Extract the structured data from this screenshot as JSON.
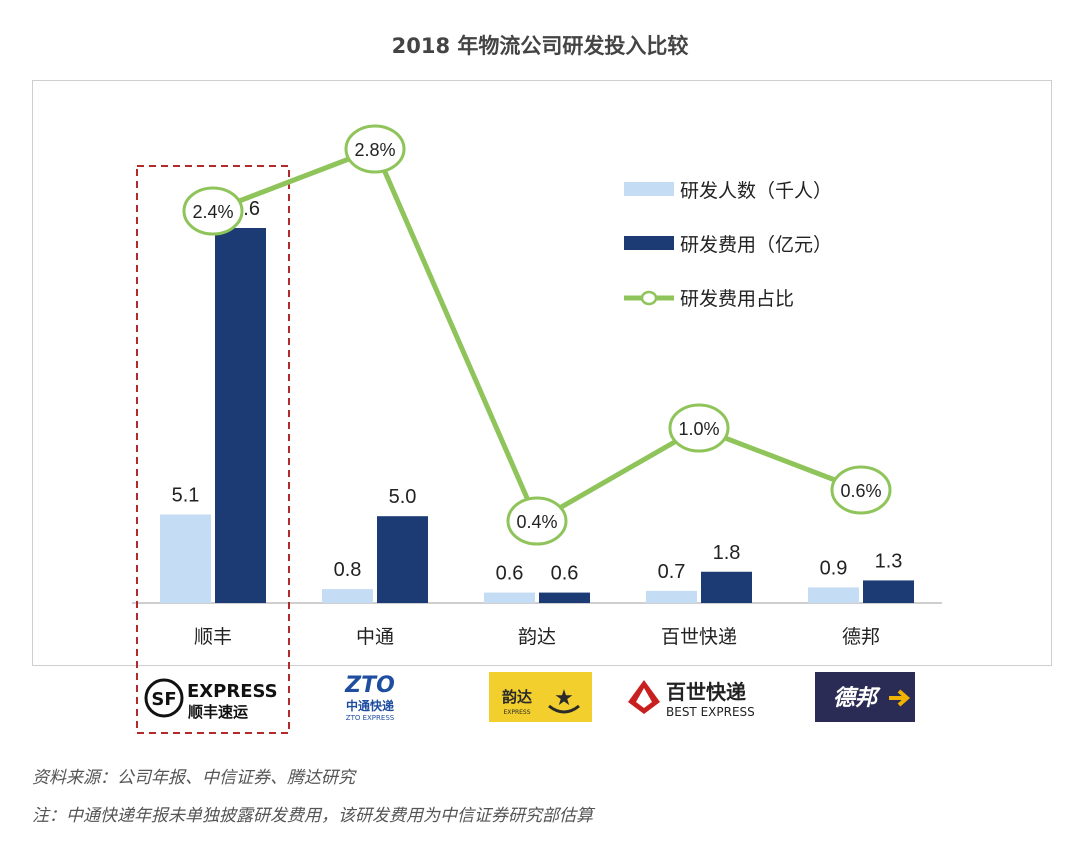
{
  "chart_data": {
    "type": "bar",
    "title": "2018 年物流公司研发投入比较",
    "categories": [
      "顺丰",
      "中通",
      "韵达",
      "百世快递",
      "德邦"
    ],
    "series": [
      {
        "name": "研发人数（千人）",
        "kind": "bar",
        "color": "#c5dcf5",
        "values": [
          5.1,
          0.8,
          0.6,
          0.7,
          0.9
        ],
        "labels": [
          "5.1",
          "0.8",
          "0.6",
          "0.7",
          "0.9"
        ]
      },
      {
        "name": "研发费用（亿元）",
        "kind": "bar",
        "color": "#1c3a73",
        "values": [
          21.6,
          5.0,
          0.6,
          1.8,
          1.3
        ],
        "labels": [
          "21.6",
          "5.0",
          "0.6",
          "1.8",
          "1.3"
        ]
      },
      {
        "name": "研发费用占比",
        "kind": "line",
        "color": "#8fc45a",
        "values": [
          2.4,
          2.8,
          0.4,
          1.0,
          0.6
        ],
        "labels": [
          "2.4%",
          "2.8%",
          "0.4%",
          "1.0%",
          "0.6%"
        ]
      }
    ],
    "highlight_category": "顺丰",
    "legend_position": "top-right",
    "grid": false
  },
  "logos": {
    "sf": {
      "main": "EXPRESS",
      "sub": "顺丰速运"
    },
    "zto": {
      "main": "ZTO",
      "sub": "中通快递",
      "small": "ZTO EXPRESS"
    },
    "yunda": {
      "main": "韵达",
      "small": "EXPRESS"
    },
    "best": {
      "main": "百世快递",
      "sub": "BEST EXPRESS"
    },
    "deppon": {
      "main": "德邦"
    }
  },
  "source": "资料来源：公司年报、中信证券、腾达研究",
  "footnote": "注：中通快递年报未单独披露研发费用，该研发费用为中信证券研究部估算"
}
